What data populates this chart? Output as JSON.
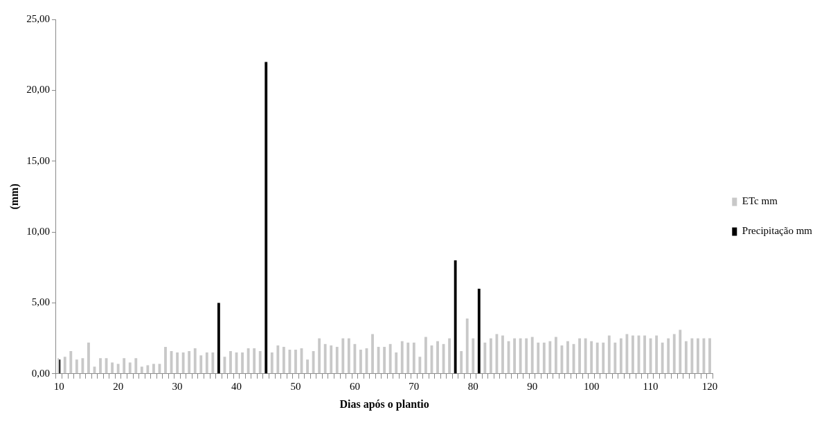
{
  "chart_data": {
    "type": "bar",
    "xlabel": "Dias após o plantio",
    "ylabel": "(mm)",
    "categories": [
      "10",
      null,
      null,
      null,
      null,
      null,
      null,
      null,
      null,
      null,
      "20",
      null,
      null,
      null,
      null,
      null,
      null,
      null,
      null,
      null,
      "30",
      null,
      null,
      null,
      null,
      null,
      null,
      null,
      null,
      null,
      "40",
      null,
      null,
      null,
      null,
      null,
      null,
      null,
      null,
      null,
      "50",
      null,
      null,
      null,
      null,
      null,
      null,
      null,
      null,
      null,
      "60",
      null,
      null,
      null,
      null,
      null,
      null,
      null,
      null,
      null,
      "70",
      null,
      null,
      null,
      null,
      null,
      null,
      null,
      null,
      null,
      "80",
      null,
      null,
      null,
      null,
      null,
      null,
      null,
      null,
      null,
      "90",
      null,
      null,
      null,
      null,
      null,
      null,
      null,
      null,
      null,
      "100",
      null,
      null,
      null,
      null,
      null,
      null,
      null,
      null,
      null,
      "110",
      null,
      null,
      null,
      null,
      null,
      null,
      null,
      null,
      null,
      "120"
    ],
    "series": [
      {
        "name": "ETc mm",
        "color": "#c8c8c8",
        "values": [
          1.1,
          1.2,
          1.6,
          1.0,
          1.1,
          2.2,
          0.5,
          1.1,
          1.1,
          0.8,
          0.7,
          1.1,
          0.8,
          1.1,
          0.5,
          0.6,
          0.7,
          0.7,
          1.9,
          1.6,
          1.5,
          1.5,
          1.6,
          1.8,
          1.3,
          1.5,
          1.5,
          null,
          1.2,
          1.6,
          1.5,
          1.5,
          1.8,
          1.8,
          1.6,
          null,
          1.5,
          2.0,
          1.9,
          1.7,
          1.7,
          1.8,
          1.0,
          1.6,
          2.5,
          2.1,
          2.0,
          1.9,
          2.5,
          2.5,
          2.1,
          1.7,
          1.8,
          2.8,
          1.9,
          1.9,
          2.1,
          1.5,
          2.3,
          2.2,
          2.2,
          1.2,
          2.6,
          2.0,
          2.3,
          2.1,
          2.5,
          null,
          1.6,
          3.9,
          2.5,
          null,
          2.2,
          2.5,
          2.8,
          2.7,
          2.3,
          2.5,
          2.5,
          2.5,
          2.6,
          2.2,
          2.2,
          2.3,
          2.6,
          2.0,
          2.3,
          2.1,
          2.5,
          2.5,
          2.3,
          2.2,
          2.2,
          2.7,
          2.2,
          2.5,
          2.8,
          2.7,
          2.7,
          2.7,
          2.5,
          2.7,
          2.2,
          2.5,
          2.8,
          3.1,
          2.3,
          2.5,
          2.5,
          2.5,
          2.5
        ]
      },
      {
        "name": "Precipitação mm",
        "color": "#000000",
        "values": [
          1,
          null,
          null,
          null,
          null,
          null,
          null,
          null,
          null,
          null,
          null,
          null,
          null,
          null,
          null,
          null,
          null,
          null,
          null,
          null,
          null,
          null,
          null,
          null,
          null,
          null,
          null,
          5,
          null,
          null,
          null,
          null,
          null,
          null,
          null,
          22,
          null,
          null,
          null,
          null,
          null,
          null,
          null,
          null,
          null,
          null,
          null,
          null,
          null,
          null,
          null,
          null,
          null,
          null,
          null,
          null,
          null,
          null,
          null,
          null,
          null,
          null,
          null,
          null,
          null,
          null,
          null,
          8,
          null,
          null,
          null,
          6,
          null,
          null,
          null,
          null,
          null,
          null,
          null,
          null,
          null,
          null,
          null,
          null,
          null,
          null,
          null,
          null,
          null,
          null,
          null,
          null,
          null,
          null,
          null,
          null,
          null,
          null,
          null,
          null,
          null,
          null,
          null,
          null,
          null,
          null,
          null,
          null,
          null,
          null,
          null
        ]
      }
    ],
    "ylim": [
      0,
      25
    ],
    "yticks": [
      {
        "value": 0,
        "label": "0,00"
      },
      {
        "value": 5,
        "label": "5,00"
      },
      {
        "value": 10,
        "label": "10,00"
      },
      {
        "value": 15,
        "label": "15,00"
      },
      {
        "value": 20,
        "label": "20,00"
      },
      {
        "value": 25,
        "label": "25,00"
      }
    ],
    "grid": false,
    "legend": "right"
  }
}
